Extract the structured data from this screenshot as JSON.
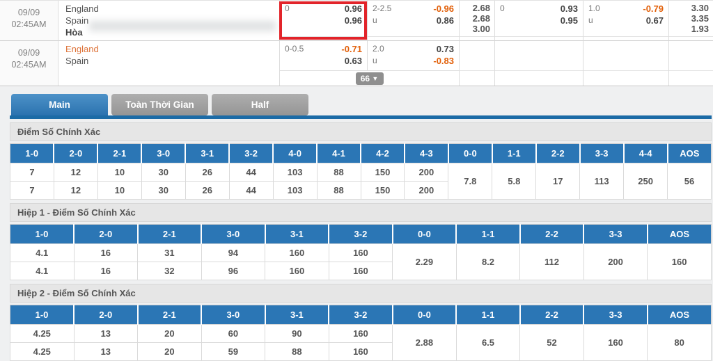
{
  "colors": {
    "header_blue": "#2b76b5",
    "active_tab_blue": "#2f75b0",
    "bar_blue": "#1c6ba6",
    "odds_orange": "#e2600a",
    "team_orange": "#dd7238",
    "highlight_red": "#e2242a"
  },
  "matches": [
    {
      "date": "09/09",
      "time": "02:45AM",
      "home": "England",
      "away": "Spain",
      "draw_label": "Hòa",
      "hdp": [
        {
          "label": "0",
          "value": "0.96"
        },
        {
          "label": "",
          "value": "0.96"
        }
      ],
      "ou": [
        {
          "label": "2-2.5",
          "value": "-0.96"
        },
        {
          "label": "u",
          "value": "0.86"
        }
      ],
      "x12": [
        "2.68",
        "2.68",
        "3.00"
      ],
      "hdp_fh": [
        {
          "label": "0",
          "value": "0.93"
        },
        {
          "label": "",
          "value": "0.95"
        }
      ],
      "ou_fh": [
        {
          "label": "1.0",
          "value": "-0.79"
        },
        {
          "label": "u",
          "value": "0.67"
        }
      ],
      "x12_fh": [
        "3.30",
        "3.35",
        "1.93"
      ]
    },
    {
      "date": "09/09",
      "time": "02:45AM",
      "home": "England",
      "away": "Spain",
      "hdp": [
        {
          "label": "0-0.5",
          "value": "-0.71"
        },
        {
          "label": "",
          "value": "0.63"
        }
      ],
      "ou": [
        {
          "label": "2.0",
          "value": "0.73"
        },
        {
          "label": "u",
          "value": "-0.83"
        }
      ],
      "more_count": "66"
    }
  ],
  "tabs": [
    {
      "label": "Main",
      "active": true
    },
    {
      "label": "Toàn Thời Gian",
      "active": false
    },
    {
      "label": "Half",
      "active": false
    }
  ],
  "sections": [
    {
      "title": "Điểm Số Chính Xác",
      "score_columns": [
        "1-0",
        "2-0",
        "2-1",
        "3-0",
        "3-1",
        "3-2",
        "4-0",
        "4-1",
        "4-2",
        "4-3"
      ],
      "row1": [
        "7",
        "12",
        "10",
        "30",
        "26",
        "44",
        "103",
        "88",
        "150",
        "200"
      ],
      "row2": [
        "7",
        "12",
        "10",
        "30",
        "26",
        "44",
        "103",
        "88",
        "150",
        "200"
      ],
      "merged_columns": [
        "0-0",
        "1-1",
        "2-2",
        "3-3",
        "4-4",
        "AOS"
      ],
      "merged_values": [
        "7.8",
        "5.8",
        "17",
        "113",
        "250",
        "56"
      ]
    },
    {
      "title": "Hiệp 1 - Điểm Số Chính Xác",
      "score_columns": [
        "1-0",
        "2-0",
        "2-1",
        "3-0",
        "3-1",
        "3-2"
      ],
      "row1": [
        "4.1",
        "16",
        "31",
        "94",
        "160",
        "160"
      ],
      "row2": [
        "4.1",
        "16",
        "32",
        "96",
        "160",
        "160"
      ],
      "merged_columns": [
        "0-0",
        "1-1",
        "2-2",
        "3-3",
        "AOS"
      ],
      "merged_values": [
        "2.29",
        "8.2",
        "112",
        "200",
        "160"
      ]
    },
    {
      "title": "Hiệp 2 - Điểm Số Chính Xác",
      "score_columns": [
        "1-0",
        "2-0",
        "2-1",
        "3-0",
        "3-1",
        "3-2"
      ],
      "row1": [
        "4.25",
        "13",
        "20",
        "60",
        "90",
        "160"
      ],
      "row2": [
        "4.25",
        "13",
        "20",
        "59",
        "88",
        "160"
      ],
      "merged_columns": [
        "0-0",
        "1-1",
        "2-2",
        "3-3",
        "AOS"
      ],
      "merged_values": [
        "2.88",
        "6.5",
        "52",
        "160",
        "80"
      ]
    }
  ]
}
